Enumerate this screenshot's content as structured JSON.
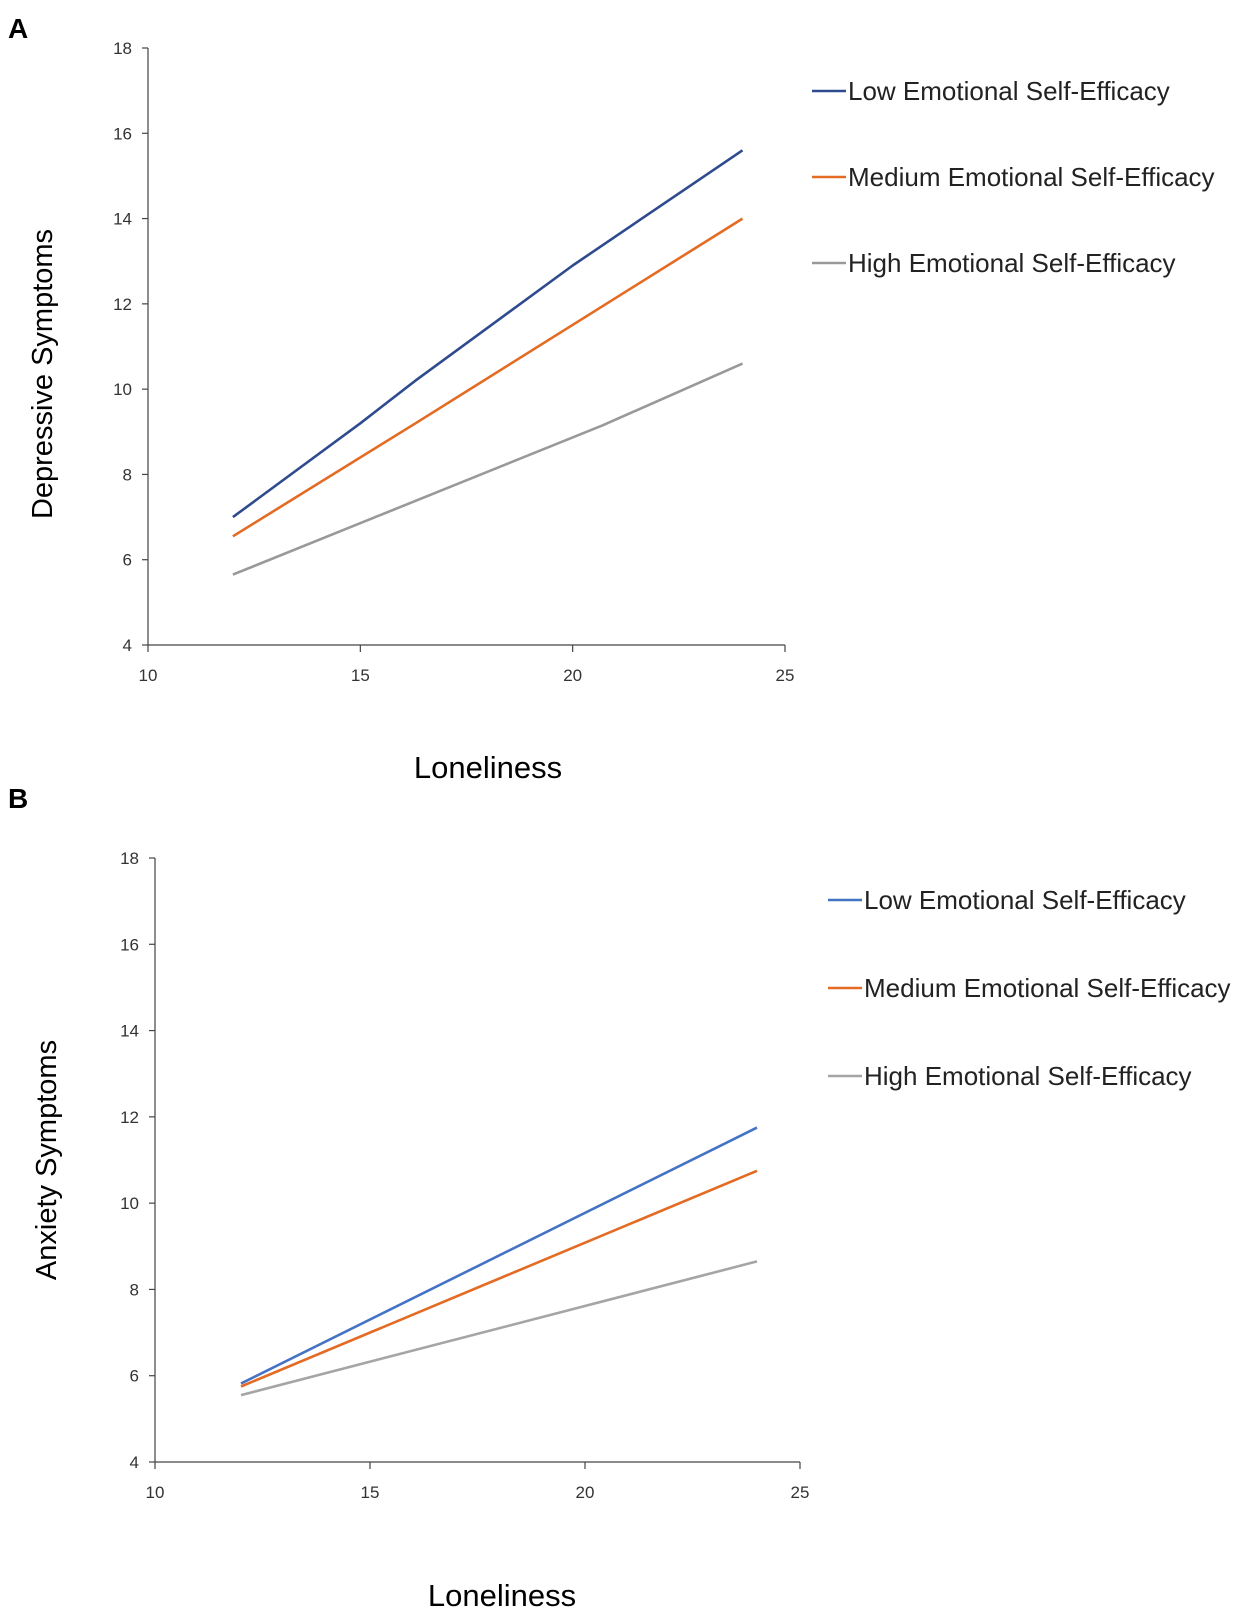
{
  "chart_data": [
    {
      "panel_label": "A",
      "type": "line",
      "title": "",
      "xlabel": "Loneliness",
      "ylabel": "Depressive Symptoms",
      "xlim": [
        10,
        25
      ],
      "ylim": [
        4,
        18
      ],
      "x_ticks": [
        10,
        15,
        20,
        25
      ],
      "y_ticks": [
        4,
        6,
        8,
        10,
        12,
        14,
        16,
        18
      ],
      "grid": false,
      "legend_position": "right",
      "series": [
        {
          "name": "Low Emotional Self-Efficacy",
          "color": "#2F4B8F",
          "x": [
            12,
            15,
            16.3,
            20,
            24
          ],
          "y": [
            7.0,
            9.2,
            10.2,
            12.9,
            15.6
          ]
        },
        {
          "name": "Medium Emotional Self-Efficacy",
          "color": "#E36B24",
          "x": [
            12,
            16.3,
            24
          ],
          "y": [
            6.55,
            9.2,
            14.0
          ]
        },
        {
          "name": "High Emotional Self-Efficacy",
          "color": "#999999",
          "x": [
            12,
            20.7,
            24
          ],
          "y": [
            5.65,
            9.15,
            10.6
          ]
        }
      ]
    },
    {
      "panel_label": "B",
      "type": "line",
      "title": "",
      "xlabel": "Loneliness",
      "ylabel": "Anxiety Symptoms",
      "xlim": [
        10,
        25
      ],
      "ylim": [
        4,
        18
      ],
      "x_ticks": [
        10,
        15,
        20,
        25
      ],
      "y_ticks": [
        4,
        6,
        8,
        10,
        12,
        14,
        16,
        18
      ],
      "grid": false,
      "legend_position": "right",
      "series": [
        {
          "name": "Low Emotional Self-Efficacy",
          "color": "#4472C4",
          "x": [
            12,
            24
          ],
          "y": [
            5.82,
            11.75
          ]
        },
        {
          "name": "Medium Emotional Self-Efficacy",
          "color": "#E36B24",
          "x": [
            12,
            24
          ],
          "y": [
            5.75,
            10.75
          ]
        },
        {
          "name": "High Emotional Self-Efficacy",
          "color": "#A5A5A5",
          "x": [
            12,
            24
          ],
          "y": [
            5.55,
            8.65
          ]
        }
      ]
    }
  ]
}
